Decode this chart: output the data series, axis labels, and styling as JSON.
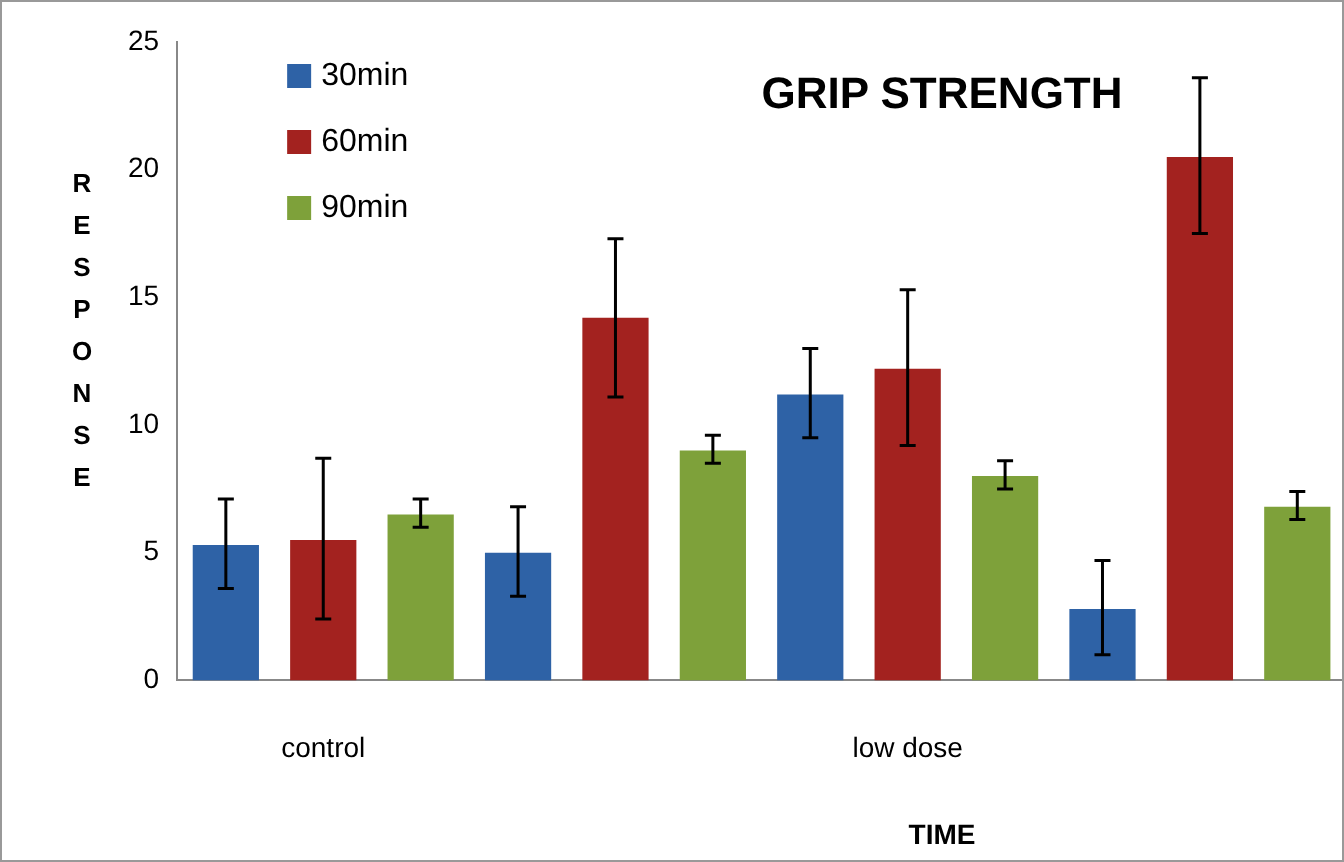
{
  "chart_data": {
    "type": "bar",
    "title": "GRIP STRENGTH",
    "xlabel": "TIME",
    "ylabel": "RESPONSE",
    "categories": [
      "control",
      null,
      "low dose",
      null
    ],
    "series": [
      {
        "name": "30min",
        "color": "#2e62a6",
        "values": [
          5.3,
          5.0,
          11.2,
          2.8
        ],
        "errors": [
          [
            3.6,
            7.1
          ],
          [
            3.3,
            6.8
          ],
          [
            9.5,
            13.0
          ],
          [
            1.0,
            4.7
          ]
        ]
      },
      {
        "name": "60min",
        "color": "#a3221f",
        "values": [
          5.5,
          14.2,
          12.2,
          20.5
        ],
        "errors": [
          [
            2.4,
            8.7
          ],
          [
            11.1,
            17.3
          ],
          [
            9.2,
            15.3
          ],
          [
            17.5,
            23.6
          ]
        ]
      },
      {
        "name": "90min",
        "color": "#7ea13a",
        "values": [
          6.5,
          9.0,
          8.0,
          6.8
        ],
        "errors": [
          [
            6.0,
            7.1
          ],
          [
            8.5,
            9.6
          ],
          [
            7.5,
            8.6
          ],
          [
            6.3,
            7.4
          ]
        ]
      }
    ],
    "ylim": [
      0,
      25
    ],
    "yticks": [
      0,
      5,
      10,
      15,
      20,
      25
    ],
    "grid": false,
    "legend": "top left"
  }
}
